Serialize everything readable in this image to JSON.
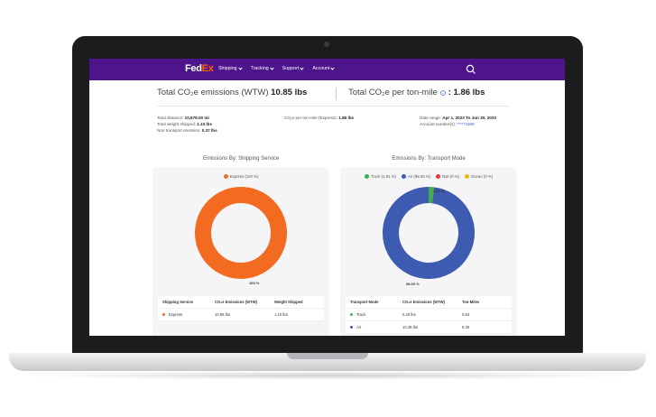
{
  "nav": {
    "logo_fed": "Fed",
    "logo_ex": "Ex",
    "items": [
      "Shipping",
      "Tracking",
      "Support",
      "Account"
    ]
  },
  "summary": {
    "total_emissions_label": "Total CO₂e emissions (WTW)",
    "total_emissions_value": "10.85 lbs",
    "per_ton_mile_label": "Total CO₂e per ton-mile",
    "per_ton_mile_value": ": 1.86 lbs"
  },
  "details": {
    "total_distance_label": "Total distance:",
    "total_distance_value": "10,578.00 mi",
    "total_weight_label": "Total weight shipped:",
    "total_weight_value": "1.10 lbs",
    "non_transport_label": "Non transport emission:",
    "non_transport_value": "0.37 lbs",
    "co2_per_ton_mile_label": "CO₂e per ton-mile (Express):",
    "co2_per_ton_mile_value": "1.86 lbs",
    "date_range_label": "Date range:",
    "date_range_value": "Apr 1, 2023 To Jun 30, 2023",
    "account_label": "Account number(s):",
    "account_value": "*****3198"
  },
  "service_panel": {
    "title": "Emissions By: Shipping Service",
    "legend": [
      {
        "label": "Express (100 %)",
        "color": "#f26b21"
      }
    ],
    "donut_label": "100 %",
    "table": {
      "headers": [
        "Shipping Service",
        "CO₂e Emissions (WTW)",
        "Weight Shipped"
      ],
      "rows": [
        {
          "name": "Express",
          "emissions": "10.85 lbs",
          "weight": "1.10 lbs",
          "color": "#f26b21"
        }
      ]
    }
  },
  "mode_panel": {
    "title": "Emissions By: Transport Mode",
    "legend": [
      {
        "label": "Truck (1.91 %)",
        "color": "#3fae49"
      },
      {
        "label": "Air (98.09 %)",
        "color": "#3d5bb0"
      },
      {
        "label": "Rail (0 %)",
        "color": "#e0383e"
      },
      {
        "label": "Ocean (0 %)",
        "color": "#f2b90f"
      }
    ],
    "donut_small_label": "1.91 %",
    "donut_large_label": "98.09 %",
    "table": {
      "headers": [
        "Transport Mode",
        "CO₂e Emissions (WTW)",
        "Ton-Miles"
      ],
      "rows": [
        {
          "name": "Truck",
          "emissions": "0.20 lbs",
          "miles": "0.63",
          "color": "#3fae49"
        },
        {
          "name": "Air",
          "emissions": "10.28 lbs",
          "miles": "5.30",
          "color": "#3d5bb0"
        }
      ]
    }
  },
  "chart_data": [
    {
      "type": "pie",
      "title": "Emissions By: Shipping Service",
      "categories": [
        "Express"
      ],
      "values": [
        100
      ],
      "colors": [
        "#f26b21"
      ]
    },
    {
      "type": "pie",
      "title": "Emissions By: Transport Mode",
      "categories": [
        "Truck",
        "Air",
        "Rail",
        "Ocean"
      ],
      "values": [
        1.91,
        98.09,
        0,
        0
      ],
      "colors": [
        "#3fae49",
        "#3d5bb0",
        "#e0383e",
        "#f2b90f"
      ]
    }
  ]
}
